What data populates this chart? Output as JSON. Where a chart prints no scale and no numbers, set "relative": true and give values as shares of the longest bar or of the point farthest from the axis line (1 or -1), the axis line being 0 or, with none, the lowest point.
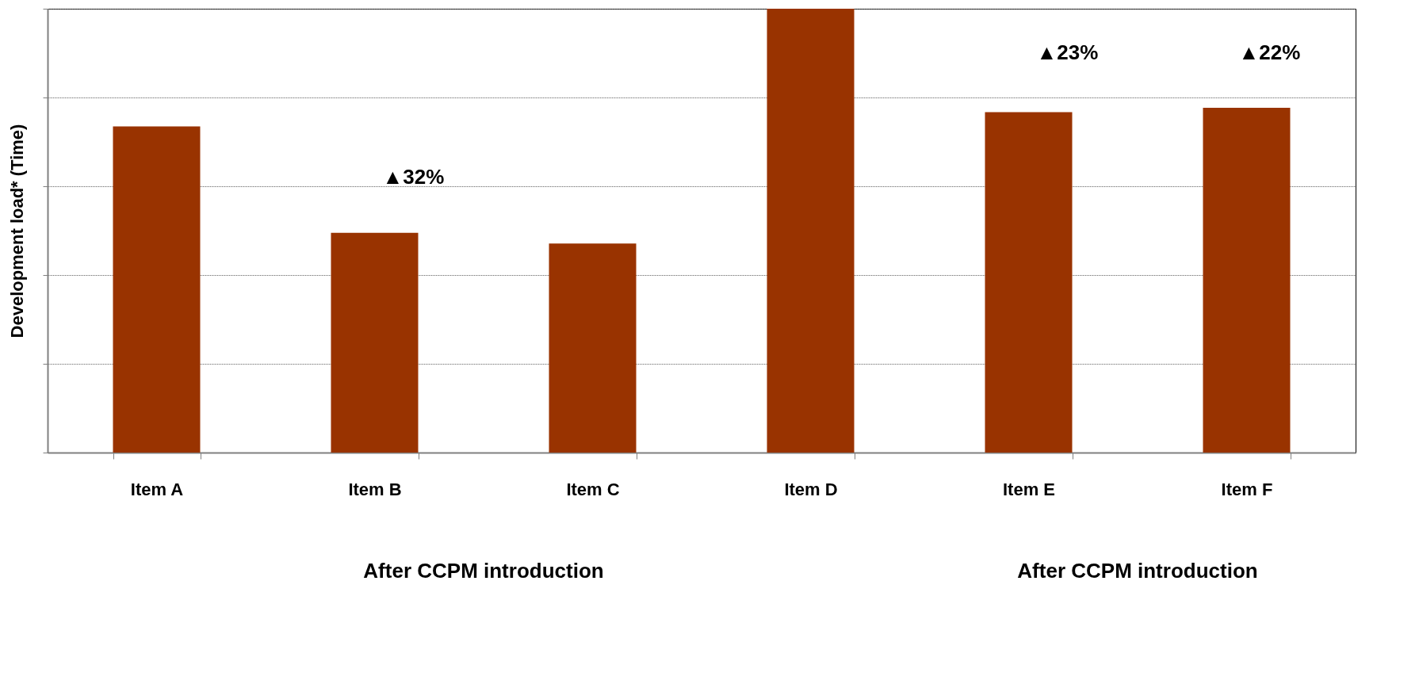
{
  "chart_data": {
    "type": "bar",
    "relative": true,
    "ylabel": "Development load* (Time)",
    "categories": [
      "Item A",
      "Item B",
      "Item C",
      "Item D",
      "Item E",
      "Item F"
    ],
    "values": [
      0.735,
      0.495,
      0.471,
      1,
      0.767,
      0.777
    ],
    "color": "#993300",
    "grid": "y",
    "annotations": [
      "▲32%",
      "▲23%",
      "▲22%",
      "After CCPM introduction",
      "After CCPM introduction"
    ]
  }
}
